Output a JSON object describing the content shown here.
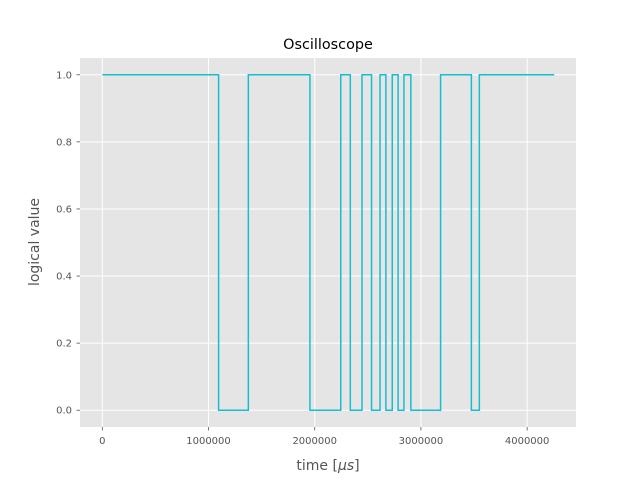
{
  "chart_data": {
    "type": "line",
    "step": true,
    "title": "Oscilloscope",
    "xlabel_prefix": "time [",
    "xlabel_unit": "μs",
    "xlabel_suffix": "]",
    "ylabel": "logical value",
    "xlim": [
      -210000,
      4460000
    ],
    "ylim": [
      -0.05,
      1.05
    ],
    "x_ticks": [
      0,
      1000000,
      2000000,
      3000000,
      4000000
    ],
    "x_tick_labels": [
      "0",
      "1000000",
      "2000000",
      "3000000",
      "4000000"
    ],
    "y_ticks": [
      0.0,
      0.2,
      0.4,
      0.6,
      0.8,
      1.0
    ],
    "y_tick_labels": [
      "0.0",
      "0.2",
      "0.4",
      "0.6",
      "0.8",
      "1.0"
    ],
    "grid": true,
    "background": "#e5e5e5",
    "grid_color": "#ffffff",
    "series": [
      {
        "color": "#17becf",
        "points": [
          [
            0,
            1
          ],
          [
            1095000,
            1
          ],
          [
            1095000,
            0
          ],
          [
            1375000,
            0
          ],
          [
            1375000,
            1
          ],
          [
            1955000,
            1
          ],
          [
            1955000,
            0
          ],
          [
            2245000,
            0
          ],
          [
            2245000,
            1
          ],
          [
            2335000,
            1
          ],
          [
            2335000,
            0
          ],
          [
            2445000,
            0
          ],
          [
            2445000,
            1
          ],
          [
            2535000,
            1
          ],
          [
            2535000,
            0
          ],
          [
            2615000,
            0
          ],
          [
            2615000,
            1
          ],
          [
            2670000,
            1
          ],
          [
            2670000,
            0
          ],
          [
            2730000,
            0
          ],
          [
            2730000,
            1
          ],
          [
            2785000,
            1
          ],
          [
            2785000,
            0
          ],
          [
            2840000,
            0
          ],
          [
            2840000,
            1
          ],
          [
            2905000,
            1
          ],
          [
            2905000,
            0
          ],
          [
            3185000,
            0
          ],
          [
            3185000,
            1
          ],
          [
            3475000,
            1
          ],
          [
            3475000,
            0
          ],
          [
            3550000,
            0
          ],
          [
            3550000,
            1
          ],
          [
            4255000,
            1
          ]
        ]
      }
    ]
  }
}
